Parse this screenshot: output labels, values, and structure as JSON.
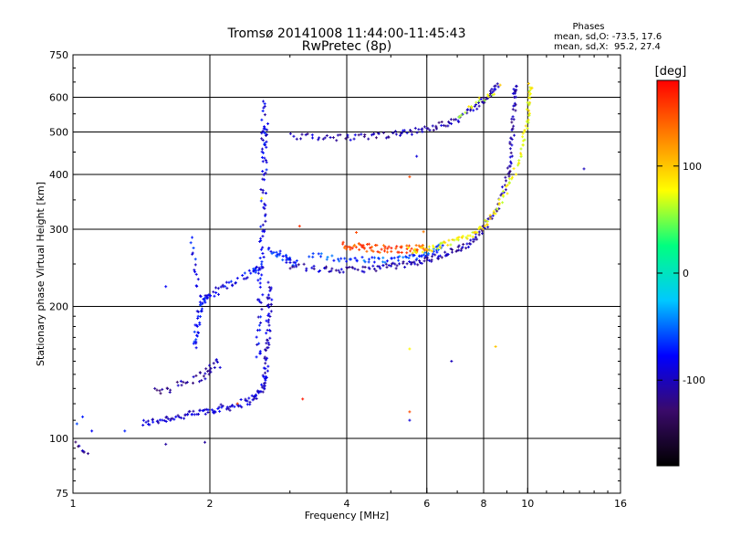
{
  "chart_data": {
    "type": "scatter",
    "title": "Tromsø 20141008 11:44:00-11:45:43",
    "subtitle": "RwPretec (8p)",
    "xlabel": "Frequency [MHz]",
    "ylabel": "Stationary phase Virtual Height [km]",
    "xscale": "log",
    "yscale": "log",
    "xlim": [
      1,
      16
    ],
    "ylim": [
      75,
      750
    ],
    "x_ticks": [
      1,
      2,
      4,
      6,
      8,
      10,
      16
    ],
    "y_ticks": [
      75,
      100,
      200,
      300,
      400,
      500,
      600,
      750
    ],
    "grid": true,
    "phase_stats": {
      "title": "Phases",
      "line_o": "mean, sd,O: -73.5, 17.6",
      "line_x": "mean, sd,X:  95.2, 27.4"
    },
    "colorbar": {
      "label": "[deg]",
      "min": -180,
      "max": 180,
      "ticks": [
        100,
        0,
        -100
      ],
      "colors": [
        "#000000",
        "#3a0a6a",
        "#0000ff",
        "#00c8ff",
        "#00ff80",
        "#ffff00",
        "#ff8000",
        "#ff0000"
      ]
    },
    "traces": [
      {
        "phase": -95,
        "jitter": 0.012,
        "n": 16,
        "points": [
          [
            1.42,
            108
          ],
          [
            1.6,
            111
          ],
          [
            1.8,
            113
          ],
          [
            2.0,
            116
          ],
          [
            2.2,
            118
          ],
          [
            2.45,
            122
          ],
          [
            2.6,
            128
          ],
          [
            2.65,
            140
          ],
          [
            2.68,
            165
          ],
          [
            2.7,
            195
          ],
          [
            2.72,
            225
          ]
        ]
      },
      {
        "phase": -110,
        "jitter": 0.015,
        "n": 10,
        "points": [
          [
            1.5,
            128
          ],
          [
            1.7,
            132
          ],
          [
            1.9,
            138
          ],
          [
            2.0,
            143
          ],
          [
            2.1,
            150
          ]
        ]
      },
      {
        "phase": -80,
        "jitter": 0.012,
        "n": 14,
        "points": [
          [
            1.85,
            160
          ],
          [
            1.88,
            185
          ],
          [
            1.92,
            205
          ],
          [
            2.0,
            212
          ],
          [
            2.2,
            225
          ],
          [
            2.5,
            240
          ],
          [
            2.6,
            250
          ]
        ]
      },
      {
        "phase": -78,
        "jitter": 0.01,
        "n": 5,
        "points": [
          [
            1.83,
            285
          ],
          [
            1.85,
            255
          ],
          [
            1.88,
            230
          ],
          [
            1.9,
            205
          ]
        ]
      },
      {
        "phase": -85,
        "jitter": 0.014,
        "n": 14,
        "points": [
          [
            2.55,
            150
          ],
          [
            2.57,
            200
          ],
          [
            2.6,
            260
          ],
          [
            2.62,
            320
          ],
          [
            2.63,
            400
          ],
          [
            2.64,
            470
          ],
          [
            2.65,
            520
          ]
        ]
      },
      {
        "phase": -90,
        "jitter": 0.01,
        "n": 5,
        "points": [
          [
            2.62,
            490
          ],
          [
            2.63,
            560
          ],
          [
            2.64,
            600
          ]
        ]
      },
      {
        "phase": -70,
        "jitter": 0.012,
        "n": 10,
        "points": [
          [
            2.7,
            270
          ],
          [
            2.85,
            262
          ],
          [
            3.0,
            255
          ],
          [
            3.1,
            252
          ]
        ]
      },
      {
        "phase": -105,
        "jitter": 0.01,
        "n": 12,
        "points": [
          [
            3.0,
            248
          ],
          [
            3.5,
            243
          ],
          [
            4.0,
            242
          ],
          [
            4.5,
            244
          ],
          [
            5.0,
            247
          ],
          [
            5.5,
            250
          ],
          [
            6.0,
            255
          ],
          [
            6.5,
            262
          ],
          [
            7.0,
            270
          ],
          [
            7.5,
            280
          ],
          [
            8.0,
            300
          ],
          [
            8.5,
            330
          ],
          [
            9.0,
            390
          ],
          [
            9.2,
            450
          ],
          [
            9.3,
            520
          ],
          [
            9.35,
            600
          ],
          [
            9.4,
            640
          ]
        ]
      },
      {
        "phase": -60,
        "jitter": 0.01,
        "n": 10,
        "points": [
          [
            3.3,
            262
          ],
          [
            3.8,
            258
          ],
          [
            4.3,
            255
          ],
          [
            4.8,
            255
          ],
          [
            5.3,
            258
          ],
          [
            5.8,
            262
          ],
          [
            6.2,
            268
          ],
          [
            6.5,
            273
          ]
        ]
      },
      {
        "phase": 150,
        "jitter": 0.012,
        "n": 12,
        "points": [
          [
            3.9,
            275
          ],
          [
            4.2,
            274
          ],
          [
            4.5,
            272
          ],
          [
            4.9,
            270
          ],
          [
            5.3,
            270
          ],
          [
            5.7,
            271
          ],
          [
            6.0,
            274
          ]
        ]
      },
      {
        "phase": 80,
        "jitter": 0.01,
        "n": 10,
        "points": [
          [
            5.5,
            268
          ],
          [
            6.0,
            270
          ],
          [
            6.5,
            275
          ],
          [
            7.0,
            283
          ],
          [
            7.5,
            292
          ],
          [
            8.0,
            305
          ],
          [
            8.5,
            330
          ],
          [
            9.0,
            370
          ],
          [
            9.5,
            420
          ],
          [
            9.8,
            480
          ],
          [
            10.0,
            540
          ],
          [
            10.1,
            600
          ],
          [
            10.15,
            645
          ]
        ]
      },
      {
        "phase": -105,
        "jitter": 0.01,
        "n": 10,
        "points": [
          [
            3.0,
            490
          ],
          [
            3.5,
            487
          ],
          [
            4.0,
            485
          ],
          [
            4.5,
            488
          ],
          [
            5.0,
            492
          ],
          [
            5.5,
            500
          ],
          [
            6.0,
            508
          ],
          [
            6.5,
            520
          ],
          [
            7.0,
            535
          ],
          [
            7.5,
            560
          ],
          [
            8.0,
            590
          ],
          [
            8.3,
            615
          ],
          [
            8.6,
            640
          ]
        ]
      },
      {
        "phase": 70,
        "jitter": 0.01,
        "n": 5,
        "points": [
          [
            7.0,
            540
          ],
          [
            7.5,
            570
          ],
          [
            8.0,
            595
          ],
          [
            8.5,
            625
          ]
        ]
      },
      {
        "phase": -110,
        "jitter": 0.008,
        "n": 4,
        "points": [
          [
            1.02,
            97
          ],
          [
            1.05,
            94
          ],
          [
            1.08,
            93
          ]
        ]
      }
    ],
    "scatter_points": [
      {
        "x": 1.02,
        "y": 108,
        "phase": -60
      },
      {
        "x": 1.05,
        "y": 112,
        "phase": -70
      },
      {
        "x": 1.1,
        "y": 104,
        "phase": -80
      },
      {
        "x": 1.3,
        "y": 104,
        "phase": -70
      },
      {
        "x": 1.6,
        "y": 97,
        "phase": -110
      },
      {
        "x": 1.95,
        "y": 98,
        "phase": -110
      },
      {
        "x": 1.6,
        "y": 222,
        "phase": -80
      },
      {
        "x": 2.3,
        "y": 120,
        "phase": 150
      },
      {
        "x": 2.6,
        "y": 353,
        "phase": 80
      },
      {
        "x": 3.2,
        "y": 123,
        "phase": 170
      },
      {
        "x": 3.15,
        "y": 305,
        "phase": 160
      },
      {
        "x": 5.5,
        "y": 395,
        "phase": 150
      },
      {
        "x": 5.5,
        "y": 115,
        "phase": 150
      },
      {
        "x": 5.5,
        "y": 110,
        "phase": -90
      },
      {
        "x": 5.5,
        "y": 160,
        "phase": 80
      },
      {
        "x": 6.8,
        "y": 150,
        "phase": -100
      },
      {
        "x": 8.5,
        "y": 162,
        "phase": 100
      },
      {
        "x": 13.3,
        "y": 412,
        "phase": -100
      },
      {
        "x": 5.9,
        "y": 296,
        "phase": 130
      },
      {
        "x": 5.7,
        "y": 440,
        "phase": -90
      },
      {
        "x": 4.2,
        "y": 295,
        "phase": 150
      },
      {
        "x": 8.7,
        "y": 640,
        "phase": 100
      }
    ]
  }
}
